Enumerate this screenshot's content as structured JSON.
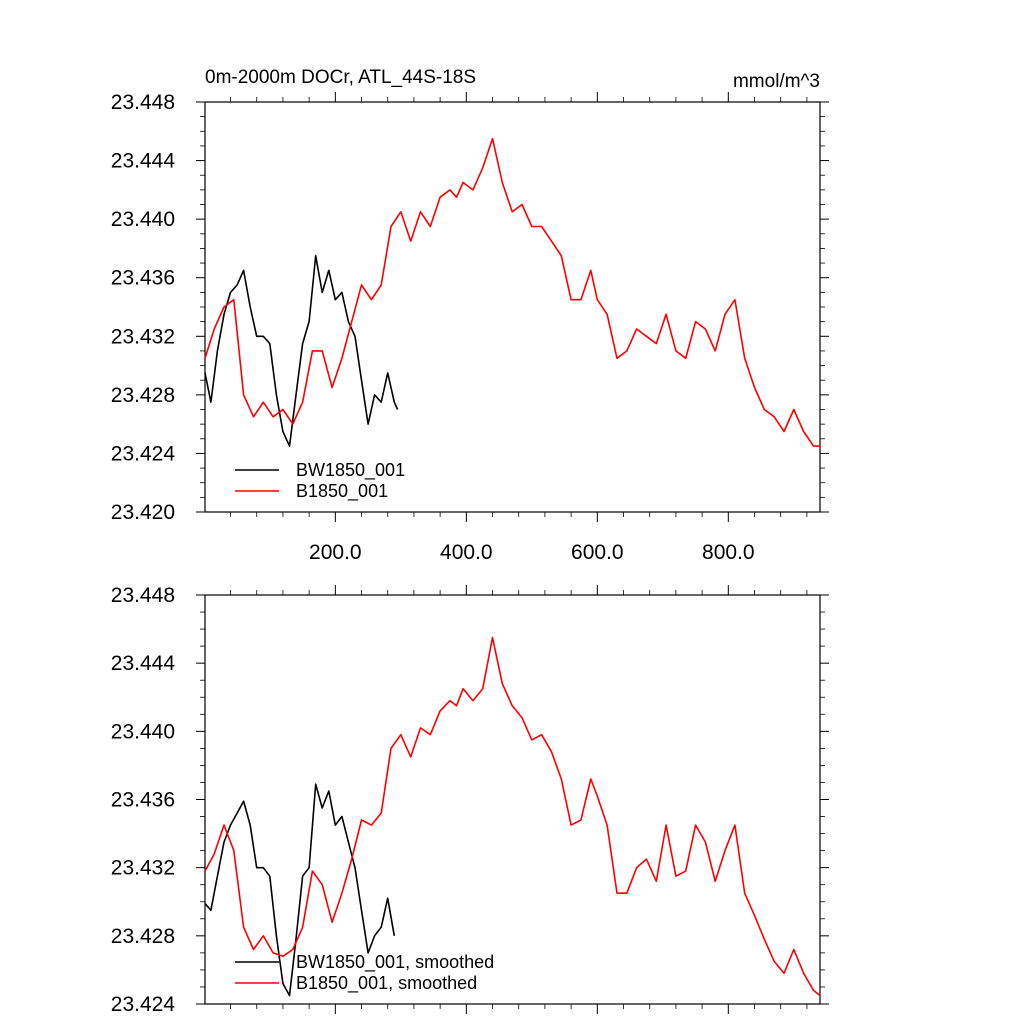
{
  "chart_data": [
    {
      "type": "line",
      "title": "0m-2000m DOCr, ATL_44S-18S",
      "units": "mmol/m^3",
      "xlabel": "",
      "ylabel": "",
      "xlim": [
        1,
        940
      ],
      "ylim": [
        23.42,
        23.448
      ],
      "x_ticks": [
        200,
        400,
        600,
        800
      ],
      "x_tick_labels": [
        "200.0",
        "400.0",
        "600.0",
        "800.0"
      ],
      "y_ticks": [
        23.42,
        23.424,
        23.428,
        23.432,
        23.436,
        23.44,
        23.444,
        23.448
      ],
      "y_tick_labels": [
        "23.420",
        "23.424",
        "23.428",
        "23.432",
        "23.436",
        "23.440",
        "23.444",
        "23.448"
      ],
      "grid": false,
      "legend_position": "bottom-left",
      "series": [
        {
          "name": "BW1850_001",
          "color": "#000000",
          "x": [
            1,
            10,
            20,
            30,
            40,
            50,
            60,
            70,
            80,
            90,
            100,
            110,
            120,
            130,
            140,
            150,
            160,
            170,
            180,
            190,
            200,
            210,
            220,
            230,
            240,
            250,
            260,
            270,
            280,
            290,
            295
          ],
          "y": [
            23.4295,
            23.4275,
            23.431,
            23.4335,
            23.435,
            23.4355,
            23.4365,
            23.434,
            23.432,
            23.432,
            23.4315,
            23.428,
            23.4255,
            23.4245,
            23.428,
            23.4315,
            23.433,
            23.4375,
            23.435,
            23.4365,
            23.4345,
            23.435,
            23.433,
            23.432,
            23.429,
            23.426,
            23.428,
            23.4275,
            23.4295,
            23.4275,
            23.427
          ]
        },
        {
          "name": "B1850_001",
          "color": "#ff0000",
          "x": [
            1,
            15,
            30,
            45,
            60,
            75,
            90,
            105,
            120,
            135,
            150,
            165,
            180,
            195,
            210,
            225,
            240,
            255,
            270,
            285,
            300,
            315,
            330,
            345,
            360,
            375,
            385,
            395,
            410,
            425,
            440,
            455,
            470,
            485,
            500,
            515,
            530,
            545,
            560,
            575,
            590,
            600,
            615,
            630,
            645,
            660,
            675,
            690,
            705,
            720,
            735,
            750,
            765,
            780,
            795,
            810,
            825,
            840,
            855,
            870,
            885,
            900,
            915,
            930,
            940
          ],
          "y": [
            23.4305,
            23.4325,
            23.434,
            23.4345,
            23.428,
            23.4265,
            23.4275,
            23.4265,
            23.427,
            23.426,
            23.4275,
            23.431,
            23.431,
            23.4285,
            23.4305,
            23.433,
            23.4355,
            23.4345,
            23.4355,
            23.4395,
            23.4405,
            23.4385,
            23.4405,
            23.4395,
            23.4415,
            23.442,
            23.4415,
            23.4425,
            23.442,
            23.4435,
            23.4455,
            23.4425,
            23.4405,
            23.441,
            23.4395,
            23.4395,
            23.4385,
            23.4375,
            23.4345,
            23.4345,
            23.4365,
            23.4345,
            23.4335,
            23.4305,
            23.431,
            23.4325,
            23.432,
            23.4315,
            23.4335,
            23.431,
            23.4305,
            23.433,
            23.4325,
            23.431,
            23.4335,
            23.4345,
            23.4305,
            23.4285,
            23.427,
            23.4265,
            23.4255,
            23.427,
            23.4255,
            23.4245,
            23.4245
          ]
        }
      ]
    },
    {
      "type": "line",
      "title": "",
      "xlabel": "",
      "ylabel": "",
      "xlim": [
        1,
        940
      ],
      "ylim": [
        23.424,
        23.448
      ],
      "y_ticks": [
        23.424,
        23.428,
        23.432,
        23.436,
        23.44,
        23.444,
        23.448
      ],
      "y_tick_labels": [
        "23.424",
        "23.428",
        "23.432",
        "23.436",
        "23.440",
        "23.444",
        "23.448"
      ],
      "grid": false,
      "legend_position": "bottom-left",
      "series": [
        {
          "name": "BW1850_001, smoothed",
          "color": "#000000",
          "x": [
            1,
            10,
            20,
            30,
            40,
            50,
            60,
            70,
            80,
            90,
            100,
            110,
            120,
            130,
            140,
            150,
            160,
            170,
            180,
            190,
            200,
            210,
            220,
            230,
            240,
            250,
            260,
            270,
            280,
            290
          ],
          "y": [
            23.4299,
            23.4295,
            23.4315,
            23.4335,
            23.4345,
            23.4352,
            23.4359,
            23.4345,
            23.432,
            23.432,
            23.4315,
            23.428,
            23.4252,
            23.4245,
            23.4278,
            23.4315,
            23.432,
            23.4369,
            23.4355,
            23.4365,
            23.4345,
            23.435,
            23.4335,
            23.432,
            23.4295,
            23.427,
            23.428,
            23.4285,
            23.4302,
            23.428
          ]
        },
        {
          "name": "B1850_001, smoothed",
          "color": "#ff0000",
          "x": [
            1,
            15,
            30,
            45,
            60,
            75,
            90,
            105,
            120,
            135,
            150,
            165,
            180,
            195,
            210,
            225,
            240,
            255,
            270,
            285,
            300,
            315,
            330,
            345,
            360,
            375,
            385,
            395,
            410,
            425,
            440,
            455,
            470,
            485,
            500,
            515,
            530,
            545,
            560,
            575,
            590,
            600,
            615,
            630,
            645,
            660,
            675,
            690,
            705,
            720,
            735,
            750,
            765,
            780,
            795,
            810,
            825,
            840,
            855,
            870,
            885,
            900,
            915,
            930,
            940
          ],
          "y": [
            23.4318,
            23.4328,
            23.4345,
            23.433,
            23.4285,
            23.4272,
            23.428,
            23.427,
            23.4268,
            23.4272,
            23.4285,
            23.4318,
            23.431,
            23.4288,
            23.4305,
            23.4325,
            23.4348,
            23.4345,
            23.4352,
            23.439,
            23.4398,
            23.4385,
            23.4402,
            23.4398,
            23.4412,
            23.4418,
            23.4415,
            23.4425,
            23.4418,
            23.4425,
            23.4455,
            23.4428,
            23.4415,
            23.4408,
            23.4395,
            23.4398,
            23.4388,
            23.4372,
            23.4345,
            23.4348,
            23.4372,
            23.4362,
            23.4345,
            23.4305,
            23.4305,
            23.432,
            23.4325,
            23.4312,
            23.4345,
            23.4315,
            23.4318,
            23.4345,
            23.4335,
            23.4312,
            23.433,
            23.4345,
            23.4305,
            23.4292,
            23.4278,
            23.4265,
            23.4258,
            23.4272,
            23.4258,
            23.4248,
            23.4245
          ]
        }
      ]
    }
  ]
}
